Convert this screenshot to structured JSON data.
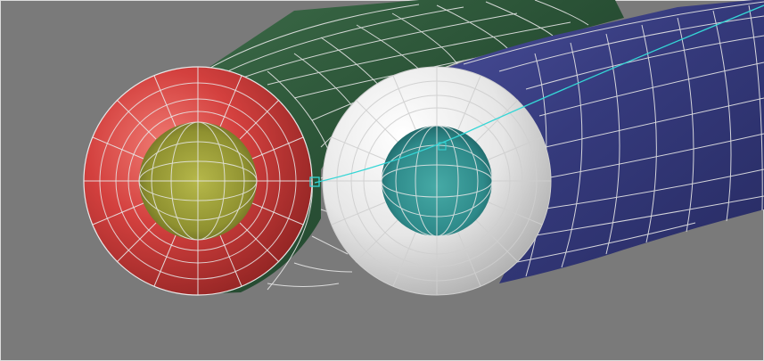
{
  "viewport": {
    "background": "#7a7a7a",
    "wire_color": "#e8e8e8",
    "selection_color": "#35d6d6"
  },
  "objects": [
    {
      "name": "green-tube",
      "color": "#2d5a3b"
    },
    {
      "name": "blue-tube",
      "color": "#3b3f86"
    },
    {
      "name": "red-ring",
      "color": "#d3403e"
    },
    {
      "name": "white-ring",
      "color": "#efefef"
    },
    {
      "name": "yellow-core",
      "color": "#9a9b34"
    },
    {
      "name": "teal-core",
      "color": "#2e8a8a"
    }
  ]
}
